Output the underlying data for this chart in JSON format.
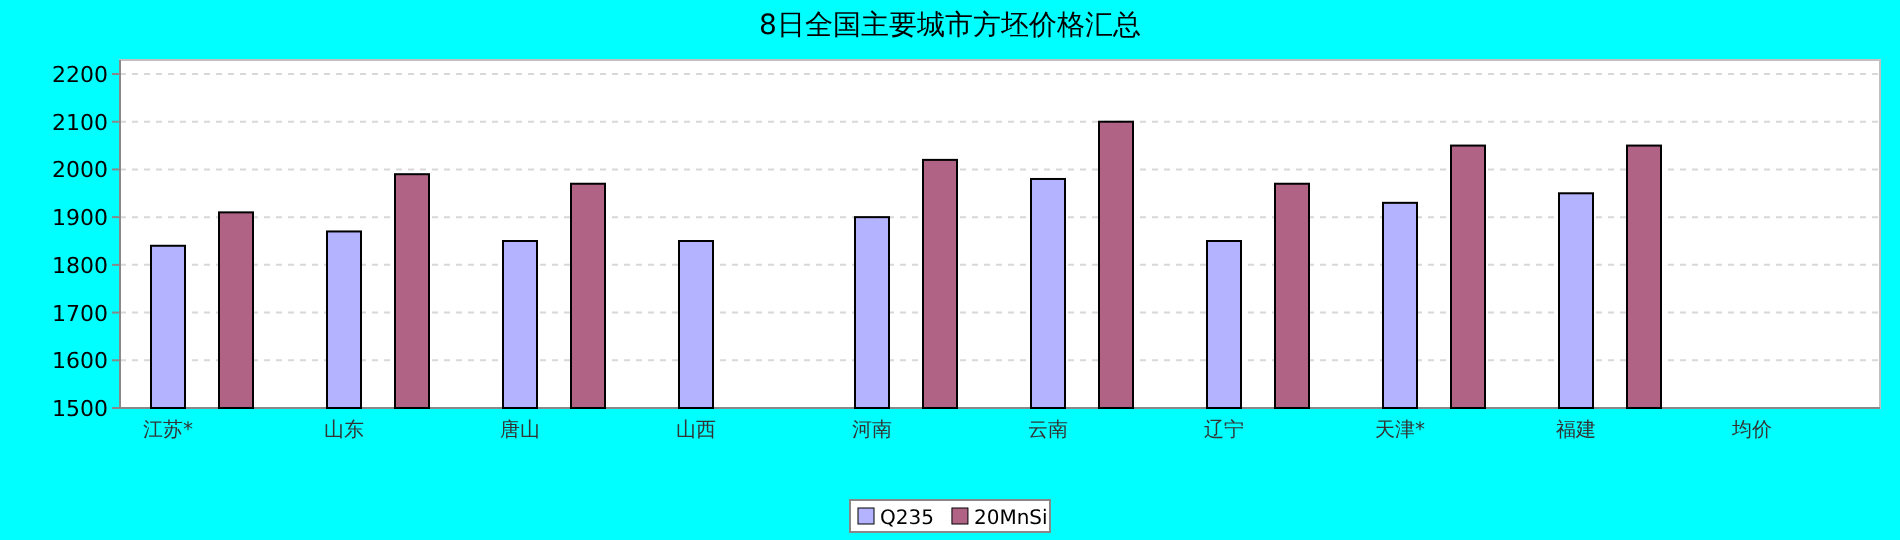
{
  "chart_data": {
    "type": "bar",
    "title": "8日全国主要城市方坯价格汇总",
    "categories": [
      "江苏*",
      "山东",
      "唐山",
      "山西",
      "河南",
      "云南",
      "辽宁",
      "天津*",
      "福建",
      "均价"
    ],
    "series": [
      {
        "name": "Q235",
        "color": "#b3b3ff",
        "values": [
          1840,
          1870,
          1850,
          1850,
          1900,
          1980,
          1850,
          1930,
          1950,
          null
        ]
      },
      {
        "name": "20MnSi",
        "color": "#b06384",
        "values": [
          1910,
          1990,
          1970,
          null,
          2020,
          2100,
          1970,
          2050,
          2050,
          null
        ]
      }
    ],
    "ylim": [
      1500,
      2200
    ],
    "yticks": [
      1500,
      1600,
      1700,
      1800,
      1900,
      2000,
      2100,
      2200
    ],
    "grid": "y",
    "legend": "bottom"
  }
}
